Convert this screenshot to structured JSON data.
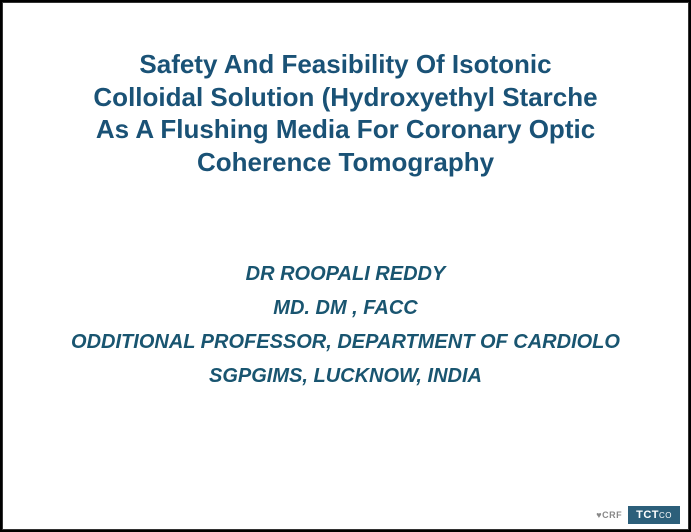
{
  "slide": {
    "background_color": "#ffffff",
    "border_color": "#333333",
    "outer_background": "#000000"
  },
  "title": {
    "line1": "Safety And Feasibility Of Isotonic",
    "line2": "Colloidal Solution (Hydroxyethyl Starche",
    "line3": "As A Flushing Media For Coronary Optic",
    "line4": "Coherence Tomography",
    "color": "#1a5276",
    "fontsize": 26,
    "fontweight": "bold"
  },
  "author": {
    "name": "DR ROOPALI REDDY",
    "credentials": "MD. DM , FACC",
    "position": "ODDITIONAL PROFESSOR, DEPARTMENT OF CARDIOLO",
    "affiliation": "SGPGIMS, LUCKNOW, INDIA",
    "color": "#195570",
    "fontsize": 20,
    "fontweight": "bold",
    "fontstyle": "italic"
  },
  "footer": {
    "crf_text": "♥CRF",
    "tct_main": "TCT",
    "tct_sub": "CO",
    "crf_color": "#888888",
    "tct_bg": "#2c5f7a",
    "tct_color": "#ffffff"
  }
}
